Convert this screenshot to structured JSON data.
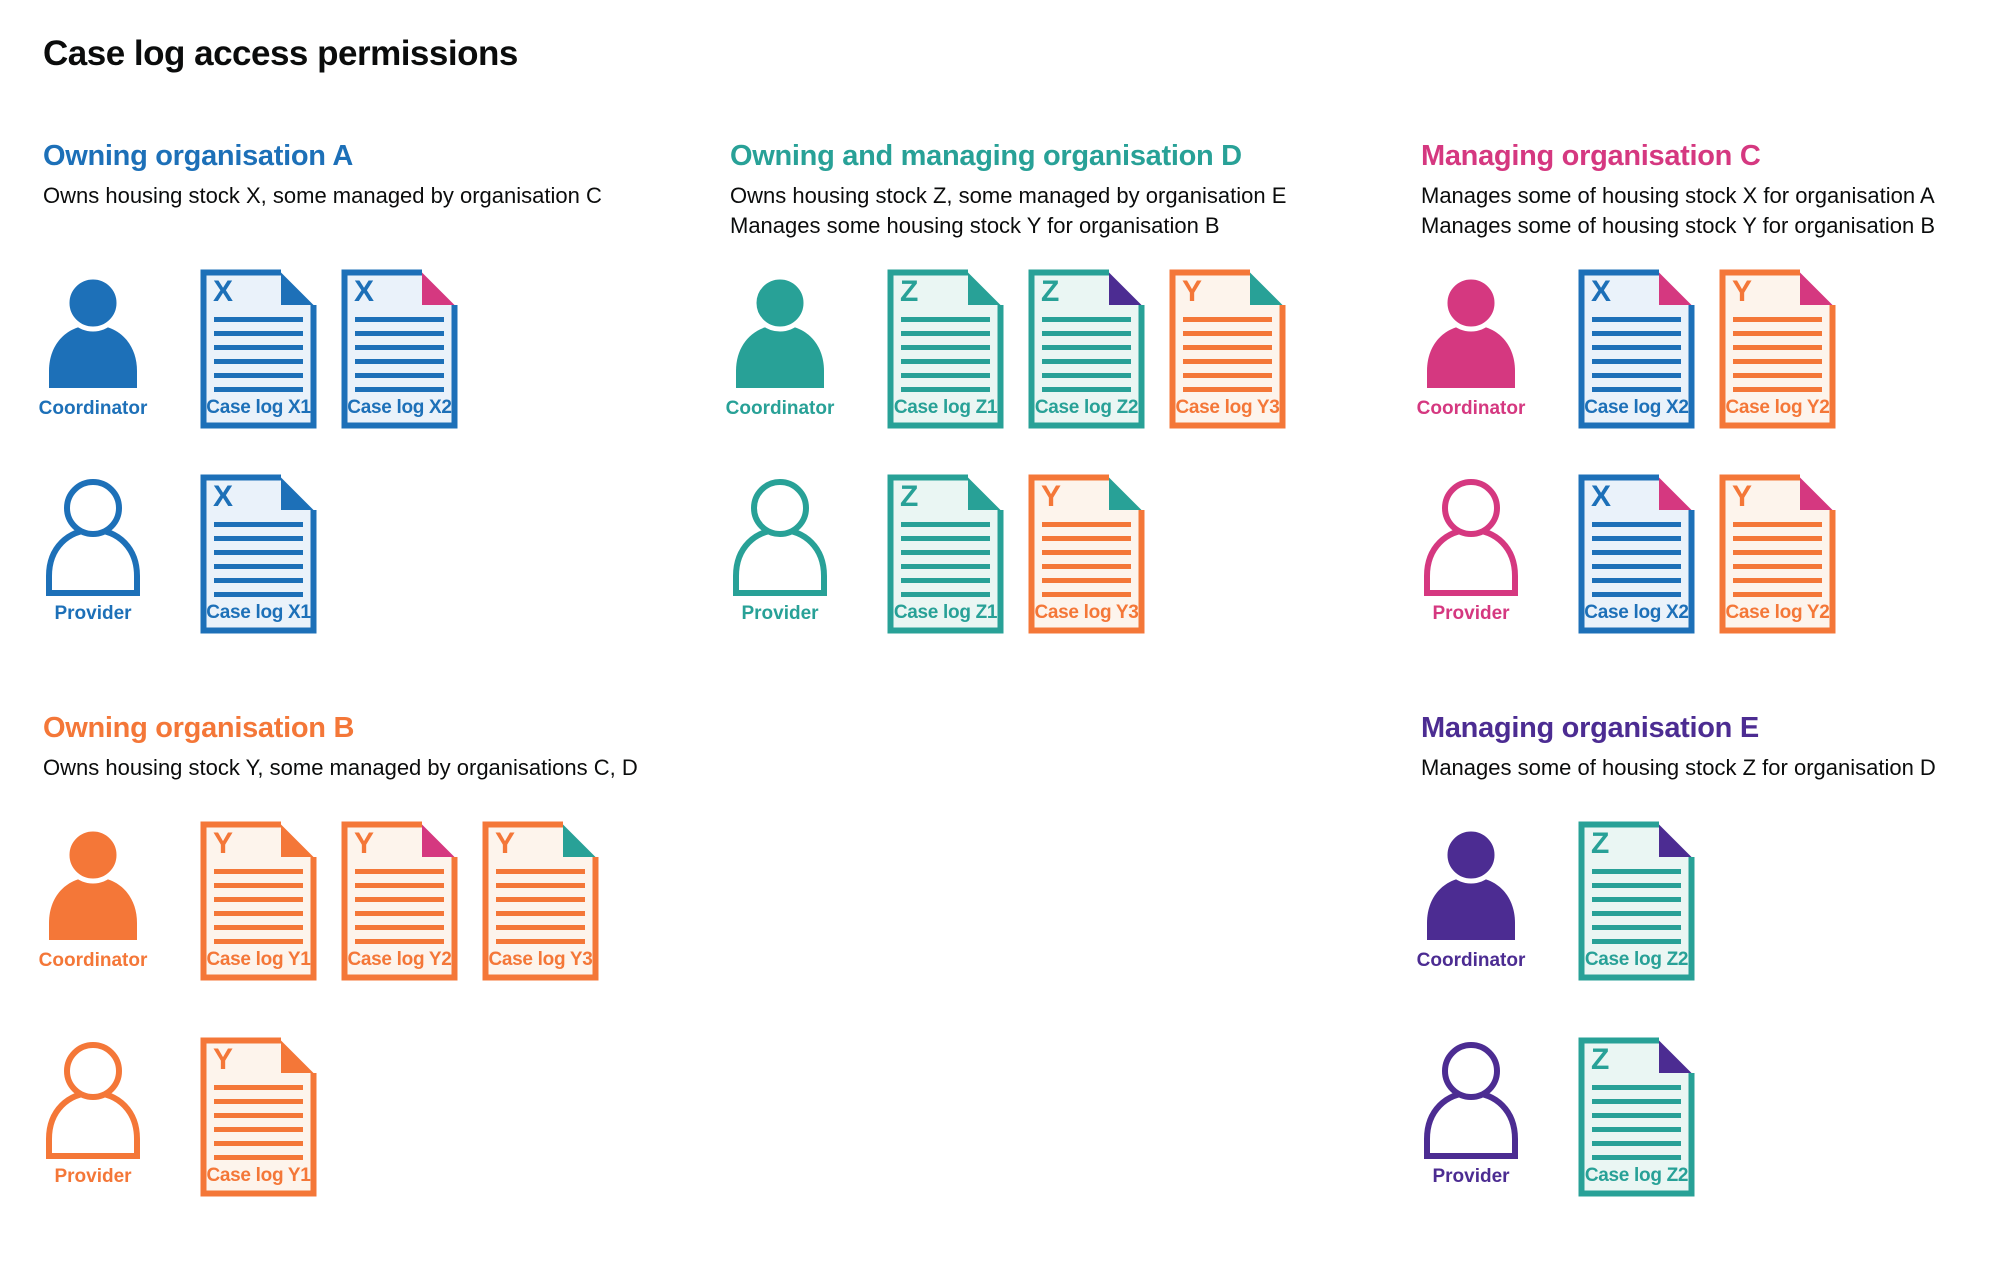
{
  "page_title": "Case log access permissions",
  "colors": {
    "blue": "#1d70b8",
    "teal": "#28a197",
    "pink": "#d53880",
    "orange": "#f47738",
    "purple": "#4c2c92",
    "text": "#0b0c0c",
    "blue_light": "#eaf2fa",
    "teal_light": "#eaf6f3",
    "orange_light": "#fdf4ec"
  },
  "sections": [
    {
      "id": "a",
      "band": "top",
      "title": "Owning organisation A",
      "accent": "blue",
      "description": [
        "Owns housing stock X, some managed by organisation C"
      ],
      "rows": [
        {
          "persona": "Coordinator",
          "docs": [
            {
              "letter": "X",
              "label": "Case log X1",
              "doc_color": "blue",
              "fold_color": "blue"
            },
            {
              "letter": "X",
              "label": "Case log X2",
              "doc_color": "blue",
              "fold_color": "pink"
            }
          ]
        },
        {
          "persona": "Provider",
          "docs": [
            {
              "letter": "X",
              "label": "Case log X1",
              "doc_color": "blue",
              "fold_color": "blue"
            }
          ]
        }
      ]
    },
    {
      "id": "d",
      "band": "top",
      "title": "Owning and managing organisation D",
      "accent": "teal",
      "description": [
        "Owns housing stock Z, some managed by organisation E",
        "Manages some housing stock Y for organisation B"
      ],
      "rows": [
        {
          "persona": "Coordinator",
          "docs": [
            {
              "letter": "Z",
              "label": "Case log Z1",
              "doc_color": "teal",
              "fold_color": "teal"
            },
            {
              "letter": "Z",
              "label": "Case log Z2",
              "doc_color": "teal",
              "fold_color": "purple"
            },
            {
              "letter": "Y",
              "label": "Case log Y3",
              "doc_color": "orange",
              "fold_color": "teal"
            }
          ]
        },
        {
          "persona": "Provider",
          "docs": [
            {
              "letter": "Z",
              "label": "Case log Z1",
              "doc_color": "teal",
              "fold_color": "teal"
            },
            {
              "letter": "Y",
              "label": "Case log Y3",
              "doc_color": "orange",
              "fold_color": "teal"
            }
          ]
        }
      ]
    },
    {
      "id": "c",
      "band": "top",
      "title": "Managing organisation C",
      "accent": "pink",
      "description": [
        "Manages some of housing stock X for organisation A",
        "Manages some of housing stock Y for organisation B"
      ],
      "rows": [
        {
          "persona": "Coordinator",
          "docs": [
            {
              "letter": "X",
              "label": "Case log X2",
              "doc_color": "blue",
              "fold_color": "pink"
            },
            {
              "letter": "Y",
              "label": "Case log Y2",
              "doc_color": "orange",
              "fold_color": "pink"
            }
          ]
        },
        {
          "persona": "Provider",
          "docs": [
            {
              "letter": "X",
              "label": "Case log X2",
              "doc_color": "blue",
              "fold_color": "pink"
            },
            {
              "letter": "Y",
              "label": "Case log Y2",
              "doc_color": "orange",
              "fold_color": "pink"
            }
          ]
        }
      ]
    },
    {
      "id": "b",
      "band": "bottom",
      "title": "Owning organisation B",
      "accent": "orange",
      "description": [
        "Owns housing stock Y, some managed by organisations C, D"
      ],
      "rows": [
        {
          "persona": "Coordinator",
          "docs": [
            {
              "letter": "Y",
              "label": "Case log Y1",
              "doc_color": "orange",
              "fold_color": "orange"
            },
            {
              "letter": "Y",
              "label": "Case log Y2",
              "doc_color": "orange",
              "fold_color": "pink"
            },
            {
              "letter": "Y",
              "label": "Case log Y3",
              "doc_color": "orange",
              "fold_color": "teal"
            }
          ]
        },
        {
          "persona": "Provider",
          "docs": [
            {
              "letter": "Y",
              "label": "Case log Y1",
              "doc_color": "orange",
              "fold_color": "orange"
            }
          ]
        }
      ]
    },
    {
      "id": "e",
      "band": "bottom",
      "title": "Managing organisation E",
      "accent": "purple",
      "description": [
        "Manages some of housing stock Z for organisation D"
      ],
      "rows": [
        {
          "persona": "Coordinator",
          "docs": [
            {
              "letter": "Z",
              "label": "Case log Z2",
              "doc_color": "teal",
              "fold_color": "purple"
            }
          ]
        },
        {
          "persona": "Provider",
          "docs": [
            {
              "letter": "Z",
              "label": "Case log Z2",
              "doc_color": "teal",
              "fold_color": "purple"
            }
          ]
        }
      ]
    }
  ]
}
